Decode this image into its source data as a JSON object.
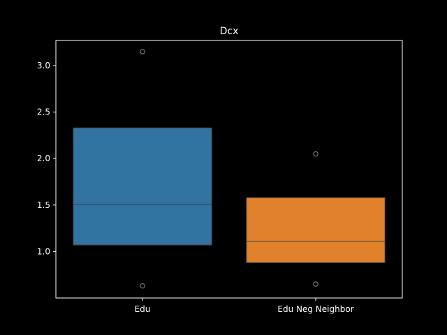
{
  "chart_data": {
    "type": "box",
    "title": "Dcx",
    "xlabel": "",
    "ylabel": "",
    "ylim": [
      0.5,
      3.27
    ],
    "yticks": [
      1.0,
      1.5,
      2.0,
      2.5,
      3.0
    ],
    "ytick_labels": [
      "1.0",
      "1.5",
      "2.0",
      "2.5",
      "3.0"
    ],
    "grid": false,
    "categories": [
      "Edu",
      "Edu Neg Neighbor"
    ],
    "boxes": [
      {
        "category": "Edu",
        "q1": 1.07,
        "median": 1.51,
        "q3": 2.33,
        "whisker_low": 1.07,
        "whisker_high": 2.33,
        "outliers": [
          3.15,
          0.63
        ],
        "color": "#3274a1"
      },
      {
        "category": "Edu Neg Neighbor",
        "q1": 0.88,
        "median": 1.11,
        "q3": 1.58,
        "whisker_low": 0.88,
        "whisker_high": 1.58,
        "outliers": [
          2.05,
          0.65
        ],
        "color": "#e1812c"
      }
    ]
  },
  "colors": {
    "background": "#000000",
    "axes": "#ffffff",
    "median_line": "#3f3f3f",
    "box_edge": "#3f3f3f",
    "outlier_edge": "#8c8c8c"
  }
}
